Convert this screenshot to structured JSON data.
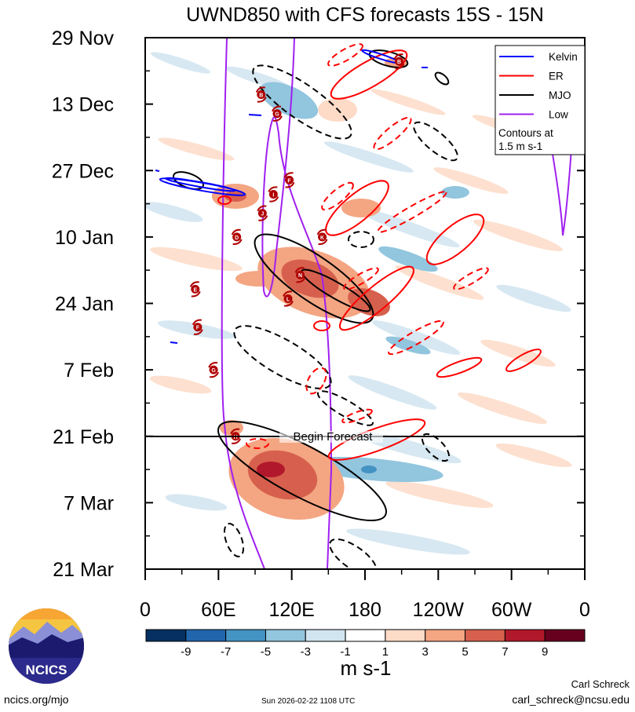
{
  "chart_data": {
    "type": "heatmap",
    "title": "UWND850 with CFS forecasts  15S - 15N",
    "units": "m s-1",
    "x_axis": {
      "ticks": [
        {
          "lon": 0,
          "label": "0"
        },
        {
          "lon": 60,
          "label": "60E"
        },
        {
          "lon": 120,
          "label": "120E"
        },
        {
          "lon": 180,
          "label": "180"
        },
        {
          "lon": 240,
          "label": "120W"
        },
        {
          "lon": 300,
          "label": "60W"
        },
        {
          "lon": 360,
          "label": "0"
        }
      ],
      "range": [
        0,
        360
      ]
    },
    "y_axis": {
      "ticks": [
        {
          "day": 0,
          "label": "29 Nov"
        },
        {
          "day": 14,
          "label": "13 Dec"
        },
        {
          "day": 28,
          "label": "27 Dec"
        },
        {
          "day": 42,
          "label": "10 Jan"
        },
        {
          "day": 56,
          "label": "24 Jan"
        },
        {
          "day": 70,
          "label": "7 Feb"
        },
        {
          "day": 84,
          "label": "21 Feb"
        },
        {
          "day": 98,
          "label": "7 Mar"
        },
        {
          "day": 112,
          "label": "21 Mar"
        }
      ],
      "range": [
        0,
        112
      ]
    },
    "forecast_start_day": 84,
    "forecast_label": "Begin Forecast",
    "legend": {
      "items": [
        {
          "name": "Kelvin",
          "color": "#0000ff"
        },
        {
          "name": "ER",
          "color": "#ff0000"
        },
        {
          "name": "MJO",
          "color": "#000000"
        },
        {
          "name": "Low",
          "color": "#a020f0"
        }
      ],
      "note": "Contours at 1.5 m s-1",
      "placement": "top-right"
    },
    "colorbar": {
      "labels": [
        "-9",
        "-7",
        "-5",
        "-3",
        "-1",
        "1",
        "3",
        "5",
        "7",
        "9"
      ],
      "colors": [
        "#053061",
        "#2166ac",
        "#4393c3",
        "#92c5de",
        "#d1e5f0",
        "#ffffff",
        "#fddbc7",
        "#f4a582",
        "#d6604d",
        "#b2182b",
        "#67001f"
      ]
    },
    "storms": [
      {
        "id": "B",
        "lon": 208,
        "day": 5
      },
      {
        "id": "B",
        "lon": 95,
        "day": 12
      },
      {
        "id": "G",
        "lon": 108,
        "day": 16
      },
      {
        "id": "F",
        "lon": 118,
        "day": 30
      },
      {
        "id": "I",
        "lon": 105,
        "day": 33
      },
      {
        "id": "J",
        "lon": 96,
        "day": 37
      },
      {
        "id": "D",
        "lon": 75,
        "day": 42
      },
      {
        "id": "K",
        "lon": 145,
        "day": 42
      },
      {
        "id": "N",
        "lon": 127,
        "day": 50
      },
      {
        "id": "E",
        "lon": 41,
        "day": 53
      },
      {
        "id": "L",
        "lon": 117,
        "day": 55
      },
      {
        "id": "F",
        "lon": 43,
        "day": 61
      },
      {
        "id": "G",
        "lon": 56,
        "day": 70
      },
      {
        "id": "H",
        "lon": 74,
        "day": 84
      }
    ]
  },
  "logo": {
    "text": "NCICS"
  },
  "footer": {
    "left": "ncics.org/mjo",
    "center": "Sun 2026-02-22 1108 UTC",
    "author": "Carl Schreck",
    "email": "carl_schreck@ncsu.edu"
  }
}
